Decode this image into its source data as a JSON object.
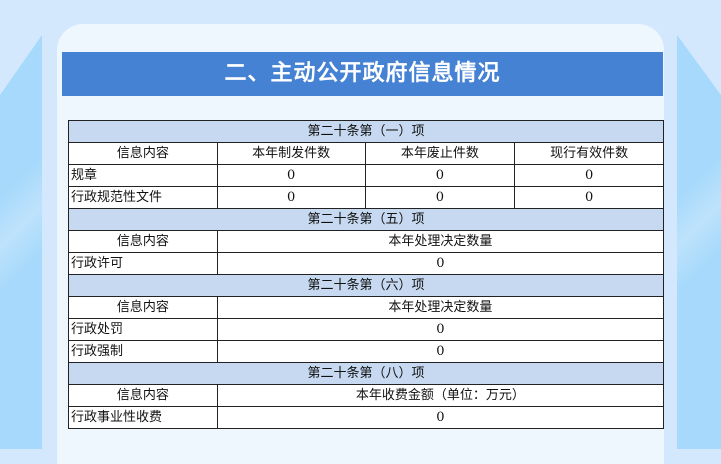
{
  "title": "二、主动公开政府信息情况",
  "sections": [
    {
      "heading": "第二十条第（一）项",
      "columns": [
        "信息内容",
        "本年制发件数",
        "本年废止件数",
        "现行有效件数"
      ],
      "rows": [
        [
          "规章",
          "0",
          "0",
          "0"
        ],
        [
          "行政规范性文件",
          "0",
          "0",
          "0"
        ]
      ]
    },
    {
      "heading": "第二十条第（五）项",
      "columns": [
        "信息内容",
        "本年处理决定数量"
      ],
      "rows": [
        [
          "行政许可",
          "0"
        ]
      ]
    },
    {
      "heading": "第二十条第（六）项",
      "columns": [
        "信息内容",
        "本年处理决定数量"
      ],
      "rows": [
        [
          "行政处罚",
          "0"
        ],
        [
          "行政强制",
          "0"
        ]
      ]
    },
    {
      "heading": "第二十条第（八）项",
      "columns": [
        "信息内容",
        "本年收费金额（单位：万元）"
      ],
      "rows": [
        [
          "行政事业性收费",
          "0"
        ]
      ]
    }
  ]
}
